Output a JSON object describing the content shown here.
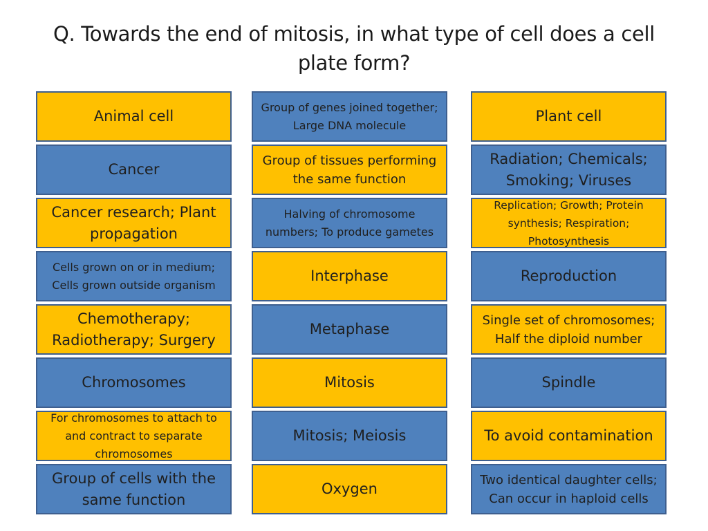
{
  "question": "Q. Towards the end of mitosis, in what type of cell does a cell plate form?",
  "colors": {
    "blue": "#4f81bd",
    "yellow": "#ffc000",
    "border": "#3e5f8f"
  },
  "columns": [
    {
      "cells": [
        {
          "text": "Animal cell",
          "color": "yellow"
        },
        {
          "text": "Cancer",
          "color": "blue"
        },
        {
          "text": "Cancer research; Plant propagation",
          "color": "yellow"
        },
        {
          "text": "Cells grown on or in medium; Cells grown outside organism",
          "color": "blue"
        },
        {
          "text": "Chemotherapy; Radiotherapy; Surgery",
          "color": "yellow"
        },
        {
          "text": "Chromosomes",
          "color": "blue"
        },
        {
          "text": "For chromosomes to attach to and contract to separate chromosomes",
          "color": "yellow"
        },
        {
          "text": "Group of cells with the same function",
          "color": "blue"
        }
      ]
    },
    {
      "cells": [
        {
          "text": "Group of genes joined together; Large DNA molecule",
          "color": "blue"
        },
        {
          "text": "Group of tissues performing the same function",
          "color": "yellow"
        },
        {
          "text": "Halving of chromosome numbers; To produce gametes",
          "color": "blue"
        },
        {
          "text": "Interphase",
          "color": "yellow"
        },
        {
          "text": "Metaphase",
          "color": "blue"
        },
        {
          "text": "Mitosis",
          "color": "yellow"
        },
        {
          "text": "Mitosis; Meiosis",
          "color": "blue"
        },
        {
          "text": "Oxygen",
          "color": "yellow"
        }
      ]
    },
    {
      "cells": [
        {
          "text": "Plant cell",
          "color": "yellow"
        },
        {
          "text": "Radiation; Chemicals; Smoking; Viruses",
          "color": "blue"
        },
        {
          "text": "Replication; Growth; Protein synthesis; Respiration; Photosynthesis",
          "color": "yellow"
        },
        {
          "text": "Reproduction",
          "color": "blue"
        },
        {
          "text": "Single set of chromosomes; Half the diploid number",
          "color": "yellow"
        },
        {
          "text": "Spindle",
          "color": "blue"
        },
        {
          "text": "To avoid contamination",
          "color": "yellow"
        },
        {
          "text": "Two identical daughter cells; Can occur in haploid cells",
          "color": "blue"
        }
      ]
    }
  ]
}
